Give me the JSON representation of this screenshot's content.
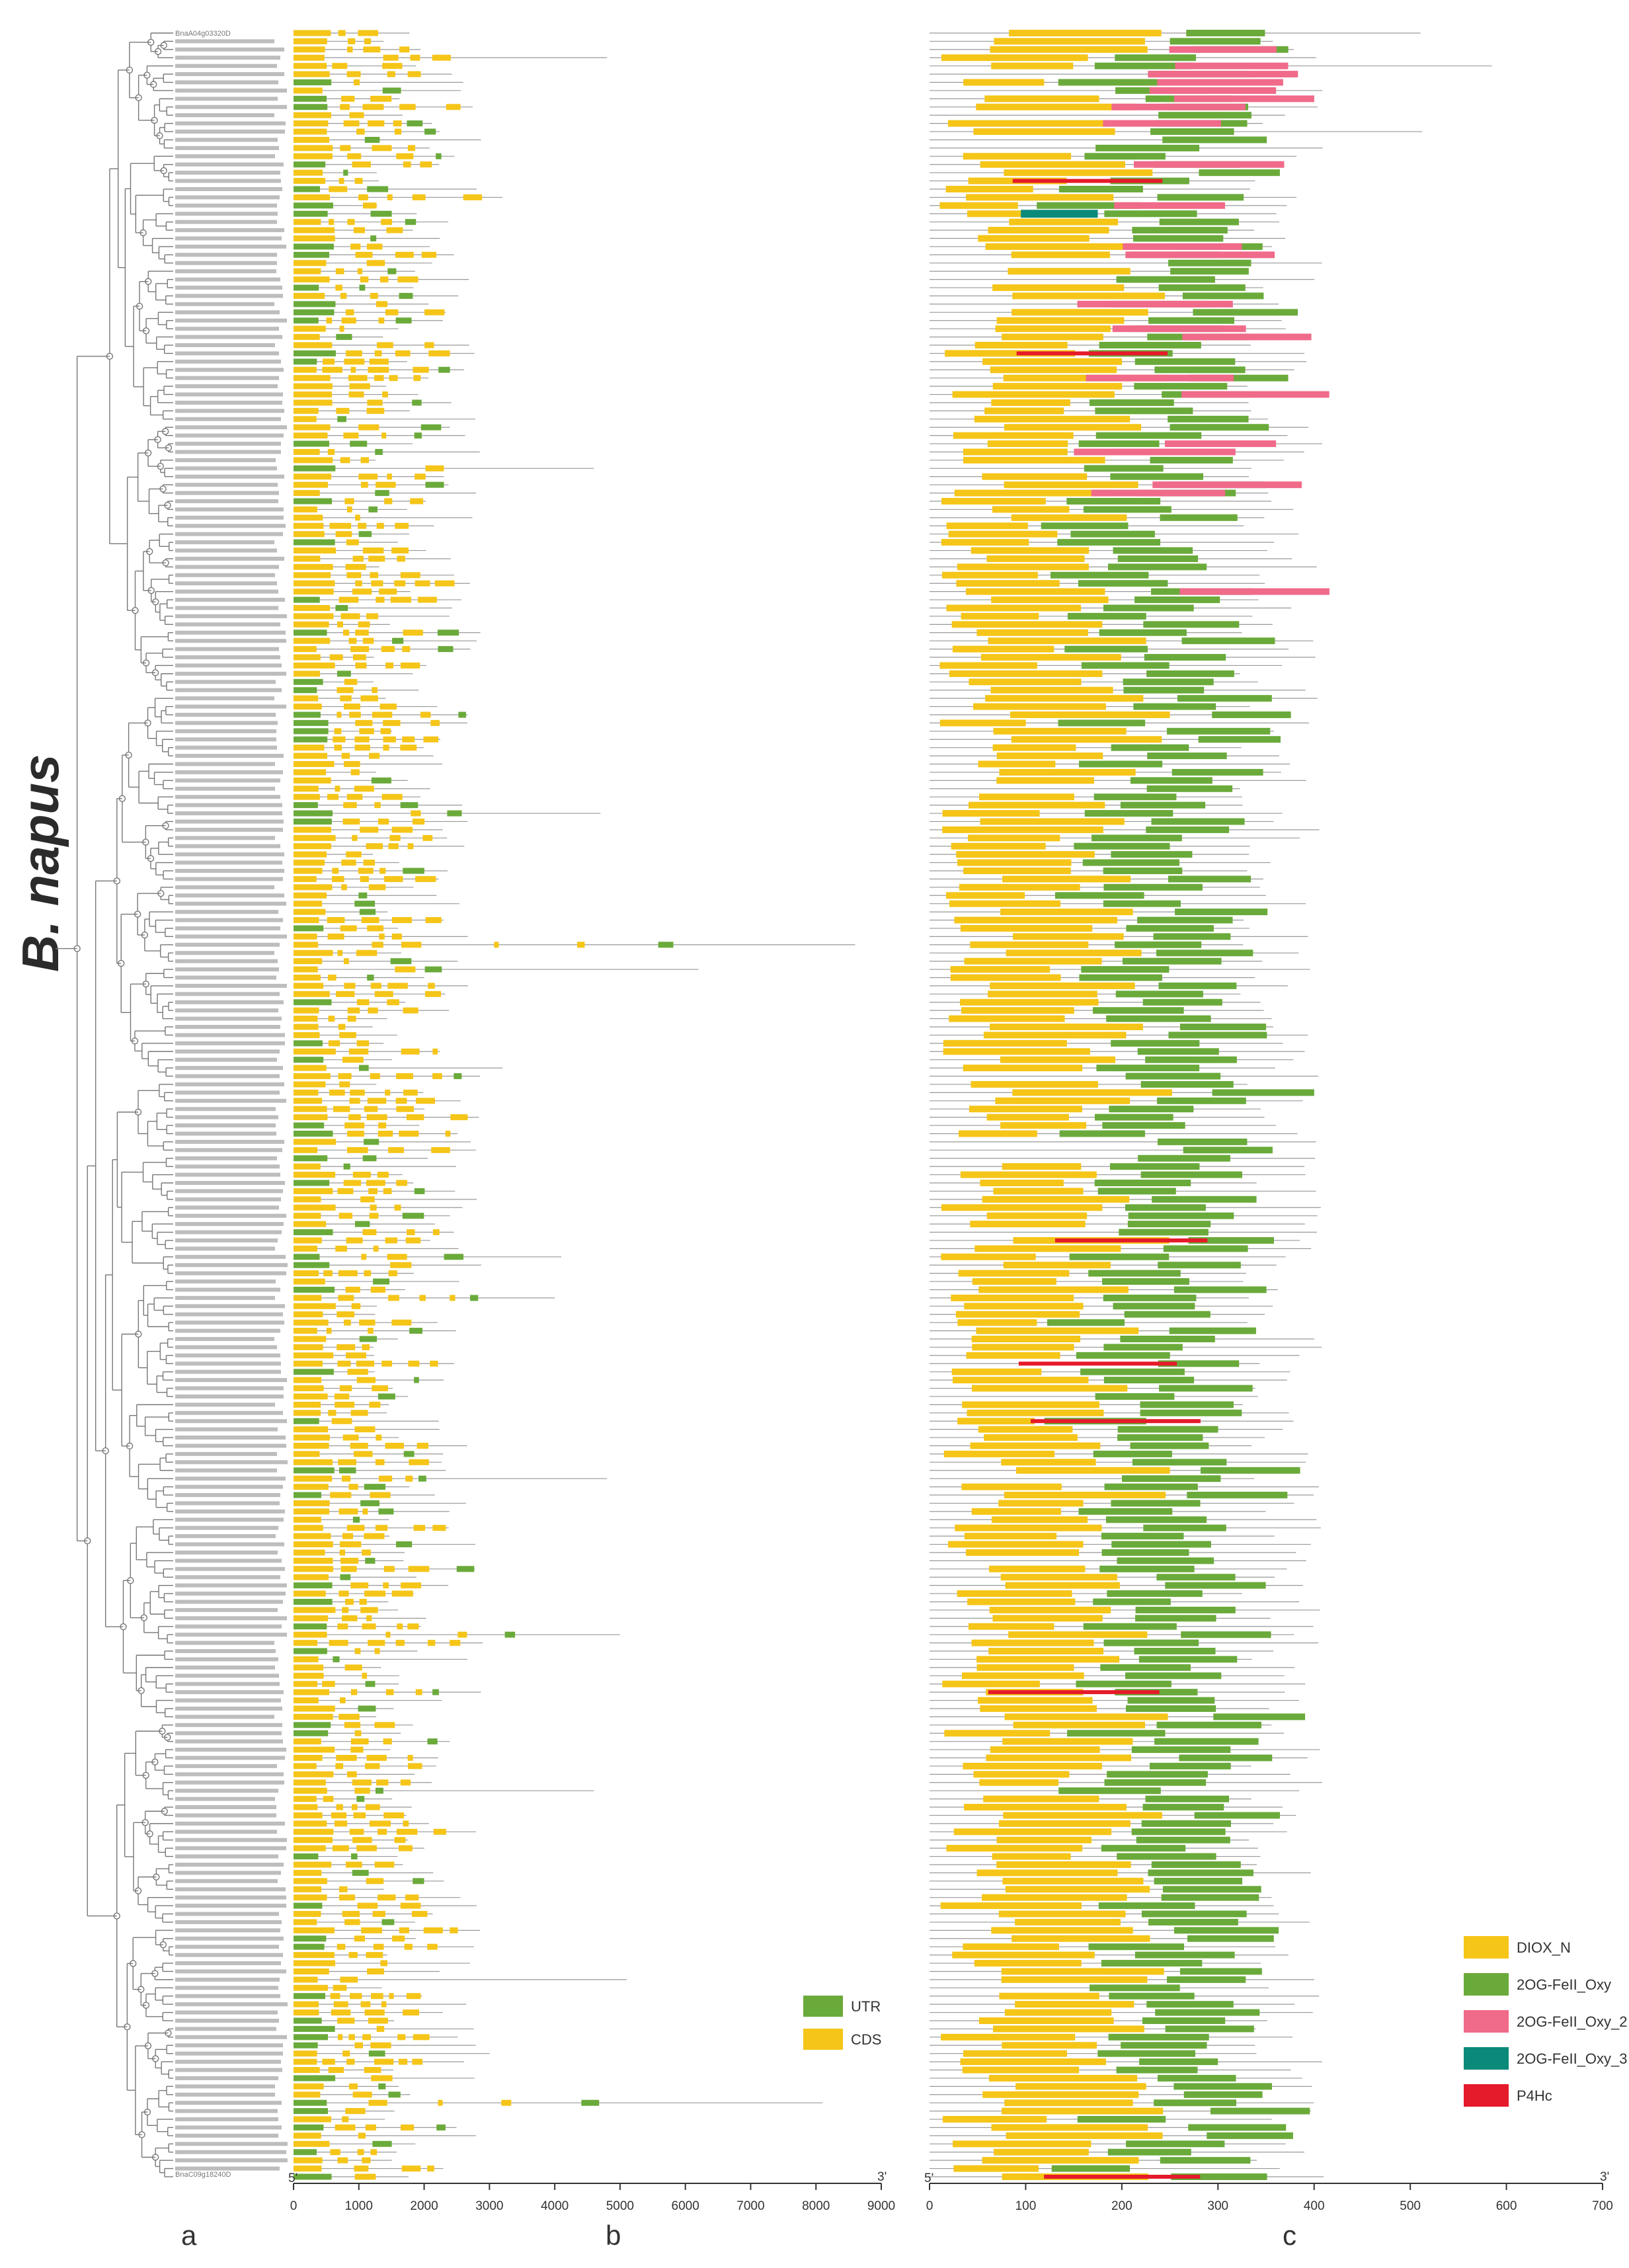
{
  "title": "B. napus",
  "colors": {
    "utr": "#6aaa3a",
    "cds": "#f5c518",
    "diox_n": "#f5c518",
    "oxy": "#6aaa3a",
    "oxy2": "#f06a8a",
    "oxy3": "#0b8a7a",
    "p4hc": "#e51a2a",
    "line": "#999999",
    "tree": "#777777"
  },
  "panels": {
    "a": "a",
    "b": "b",
    "c": "c"
  },
  "gene_labels": {
    "first": "BnaA04g03320D",
    "last": "BnaC09g18240D"
  },
  "panel_b": {
    "start": "5'",
    "end": "3'",
    "ticks": [
      "0",
      "1000",
      "2000",
      "3000",
      "4000",
      "5000",
      "6000",
      "7000",
      "8000",
      "9000"
    ],
    "range": [
      0,
      9000
    ],
    "legend": [
      {
        "key": "utr",
        "label": "UTR"
      },
      {
        "key": "cds",
        "label": "CDS"
      }
    ]
  },
  "panel_c": {
    "start": "5'",
    "end": "3'",
    "ticks": [
      "0",
      "100",
      "200",
      "300",
      "400",
      "500",
      "600",
      "700"
    ],
    "range": [
      0,
      700
    ],
    "legend": [
      {
        "key": "diox_n",
        "label": "DIOX_N"
      },
      {
        "key": "oxy",
        "label": "2OG-FeII_Oxy"
      },
      {
        "key": "oxy2",
        "label": "2OG-FeII_Oxy_2"
      },
      {
        "key": "oxy3",
        "label": "2OG-FeII_Oxy_3"
      },
      {
        "key": "p4hc",
        "label": "P4Hc"
      }
    ]
  }
}
